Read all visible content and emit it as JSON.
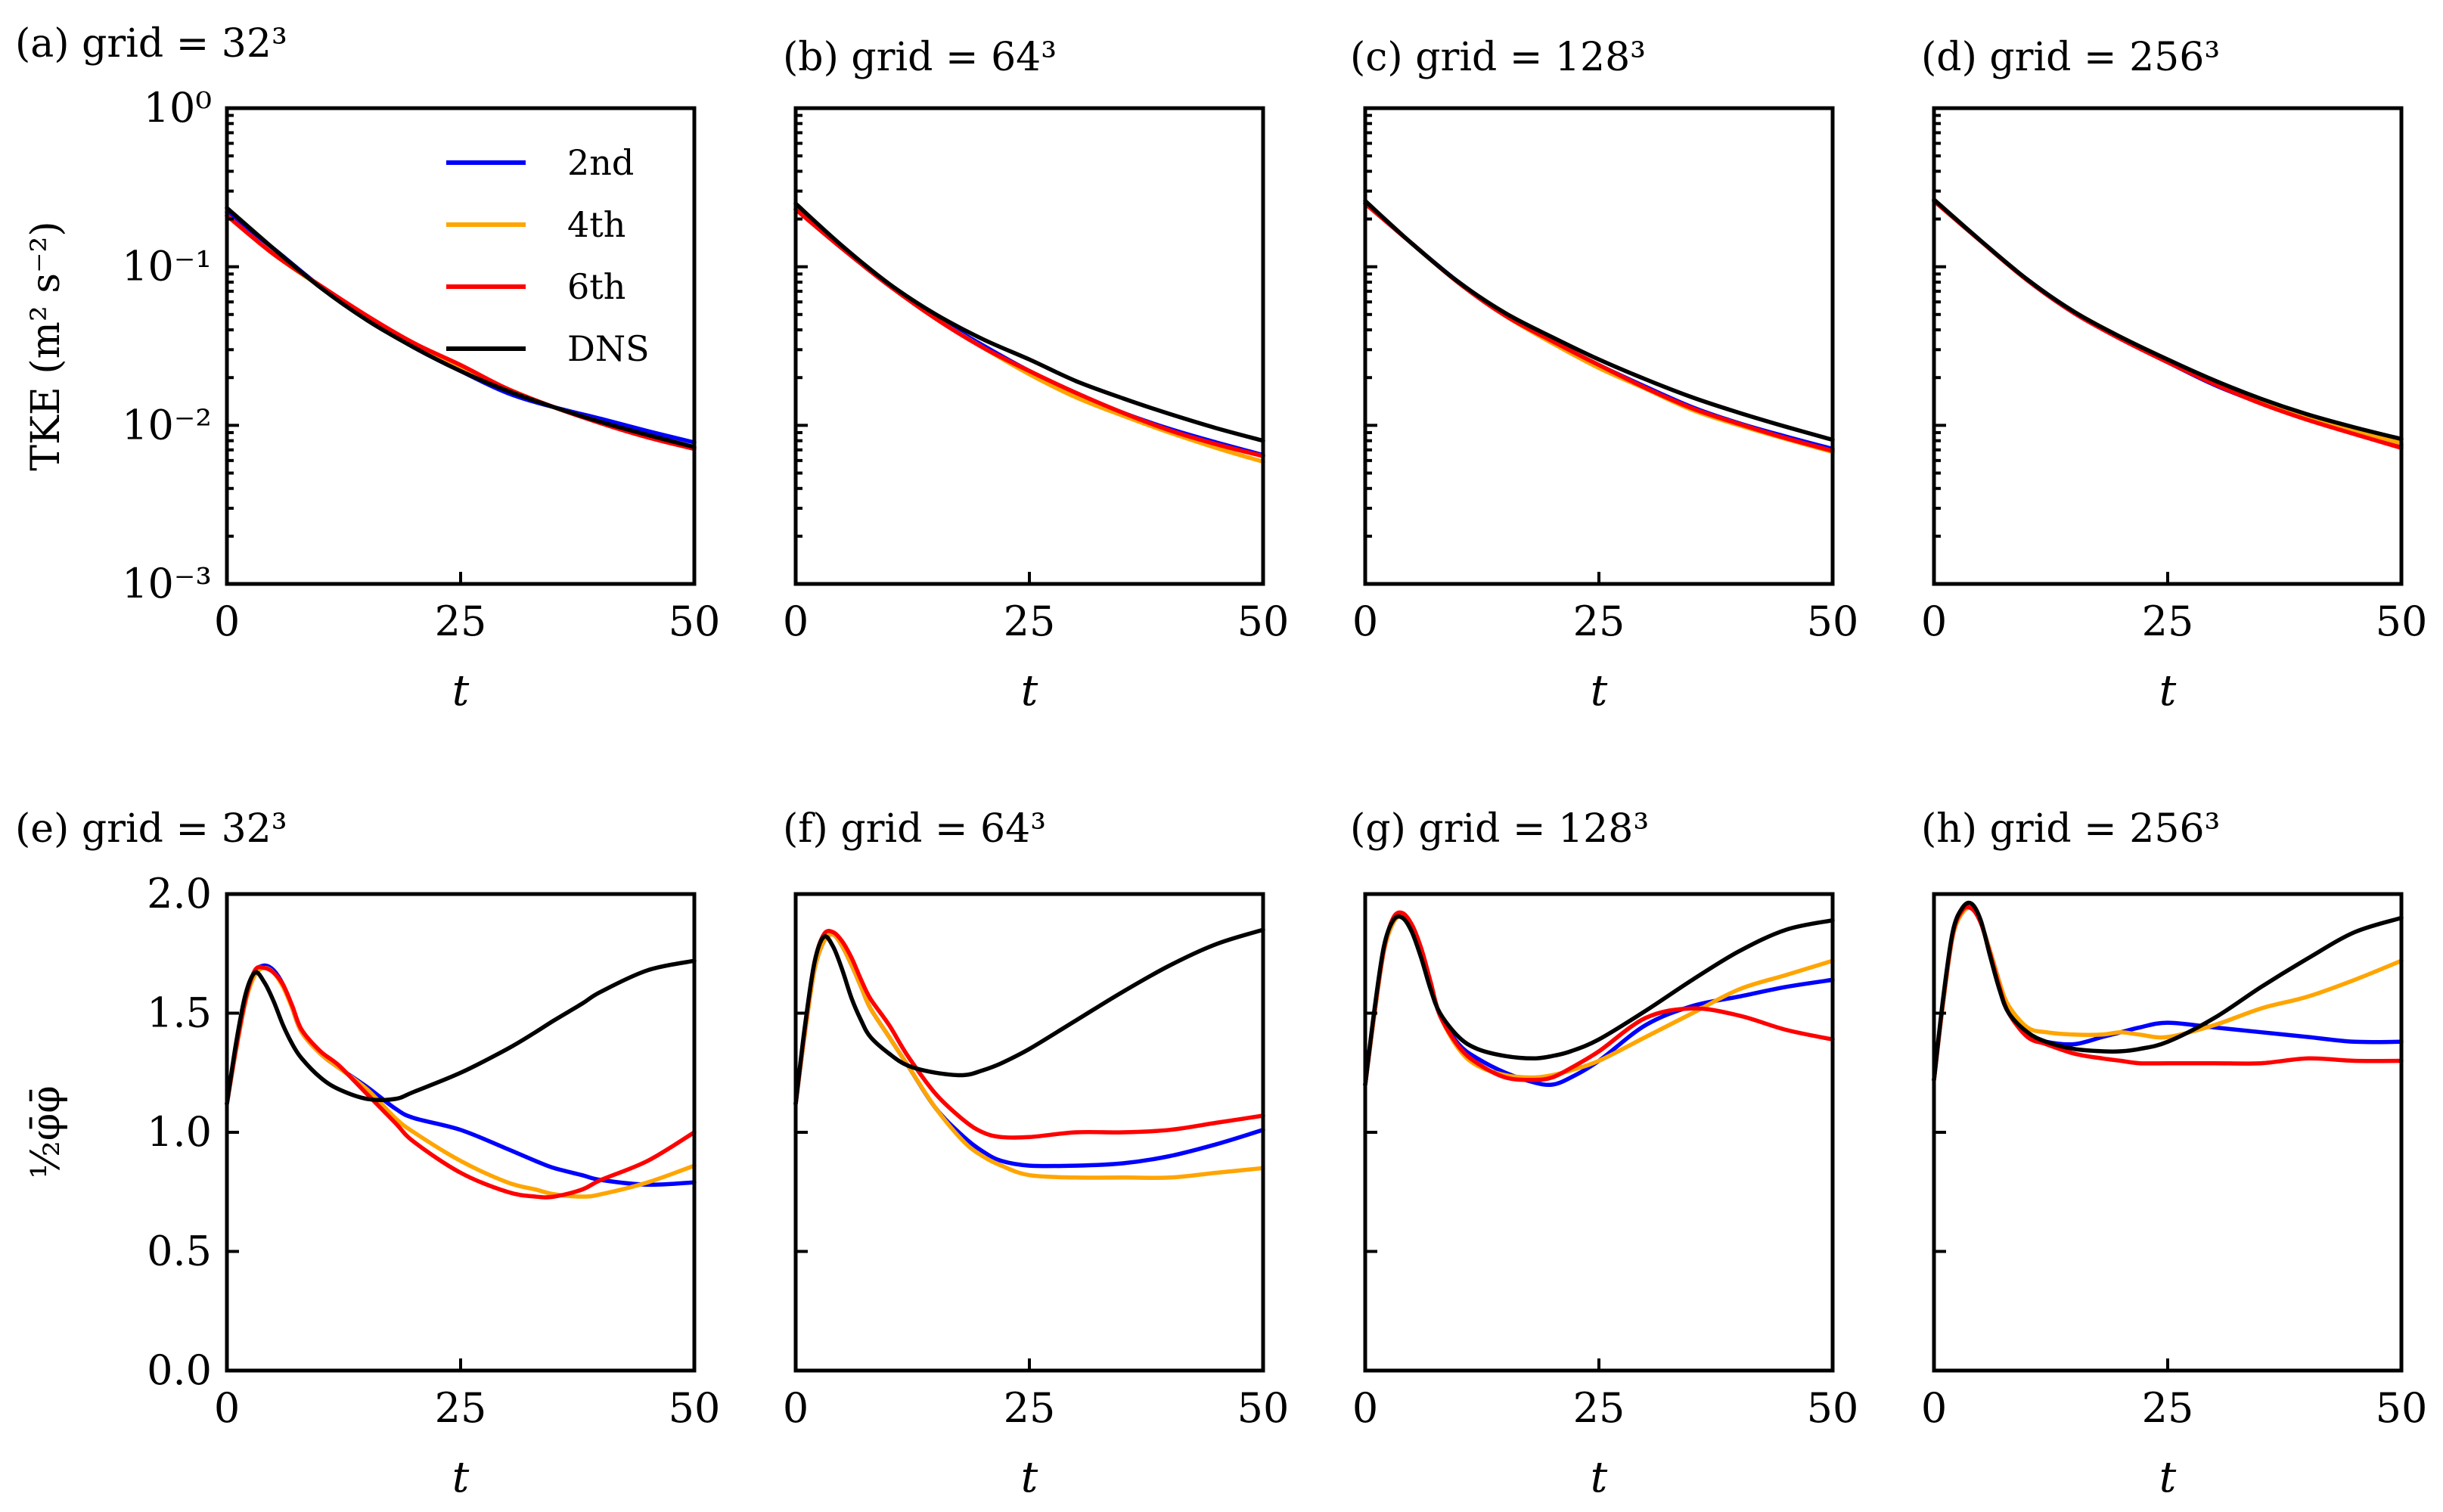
{
  "colors": {
    "2nd": "#0000ff",
    "4th": "#ffa500",
    "6th": "#ff0000",
    "DNS": "#000000"
  },
  "legend": [
    "2nd",
    "4th",
    "6th",
    "DNS"
  ],
  "top_ylabel": "TKE (m² s⁻²)",
  "bottom_ylabel": "½φ̄φ̄",
  "xlabel": "t",
  "chart_data": [
    {
      "type": "line",
      "panel": "a",
      "title": "(a) grid = 32³",
      "xlabel": "t",
      "ylabel": "TKE (m² s⁻²)",
      "yscale": "log",
      "xlim": [
        0,
        50
      ],
      "ylim": [
        0.001,
        1
      ],
      "x_ticks": [
        0,
        25,
        50
      ],
      "y_ticks": [
        "10⁰",
        "10⁻¹",
        "10⁻²",
        "10⁻³"
      ],
      "legend_position": "top-right",
      "x": [
        0,
        5,
        10,
        15,
        20,
        25,
        30,
        35,
        40,
        45,
        50
      ],
      "series": [
        {
          "name": "2nd",
          "values": [
            0.22,
            0.13,
            0.075,
            0.047,
            0.031,
            0.022,
            0.016,
            0.013,
            0.011,
            0.0092,
            0.0078
          ]
        },
        {
          "name": "4th",
          "values": [
            0.21,
            0.12,
            0.075,
            0.048,
            0.033,
            0.023,
            0.017,
            0.013,
            0.0105,
            0.0085,
            0.0072
          ]
        },
        {
          "name": "6th",
          "values": [
            0.21,
            0.12,
            0.076,
            0.049,
            0.033,
            0.024,
            0.017,
            0.013,
            0.0103,
            0.0084,
            0.0071
          ]
        },
        {
          "name": "DNS",
          "values": [
            0.235,
            0.13,
            0.074,
            0.046,
            0.031,
            0.022,
            0.0165,
            0.013,
            0.0105,
            0.0087,
            0.0073
          ]
        }
      ]
    },
    {
      "type": "line",
      "panel": "b",
      "title": "(b) grid = 64³",
      "yscale": "log",
      "xlim": [
        0,
        50
      ],
      "ylim": [
        0.001,
        1
      ],
      "xlabel": "t",
      "x_ticks": [
        0,
        25,
        50
      ],
      "x": [
        0,
        5,
        10,
        15,
        20,
        25,
        30,
        35,
        40,
        45,
        50
      ],
      "series": [
        {
          "name": "2nd",
          "values": [
            0.23,
            0.13,
            0.076,
            0.048,
            0.032,
            0.022,
            0.016,
            0.012,
            0.0095,
            0.0078,
            0.0065
          ]
        },
        {
          "name": "4th",
          "values": [
            0.23,
            0.13,
            0.076,
            0.047,
            0.031,
            0.021,
            0.015,
            0.0115,
            0.009,
            0.0072,
            0.0059
          ]
        },
        {
          "name": "6th",
          "values": [
            0.23,
            0.13,
            0.076,
            0.047,
            0.031,
            0.022,
            0.016,
            0.012,
            0.0093,
            0.0076,
            0.0064
          ]
        },
        {
          "name": "DNS",
          "values": [
            0.25,
            0.135,
            0.078,
            0.05,
            0.035,
            0.026,
            0.019,
            0.0148,
            0.0118,
            0.0096,
            0.008
          ]
        }
      ]
    },
    {
      "type": "line",
      "panel": "c",
      "title": "(c) grid = 128³",
      "yscale": "log",
      "xlim": [
        0,
        50
      ],
      "ylim": [
        0.001,
        1
      ],
      "xlabel": "t",
      "x_ticks": [
        0,
        25,
        50
      ],
      "x": [
        0,
        5,
        10,
        15,
        20,
        25,
        30,
        35,
        40,
        45,
        50
      ],
      "series": [
        {
          "name": "2nd",
          "values": [
            0.25,
            0.14,
            0.08,
            0.05,
            0.034,
            0.024,
            0.0175,
            0.013,
            0.0103,
            0.0085,
            0.0071
          ]
        },
        {
          "name": "4th",
          "values": [
            0.25,
            0.14,
            0.079,
            0.049,
            0.033,
            0.023,
            0.017,
            0.0125,
            0.01,
            0.0082,
            0.0068
          ]
        },
        {
          "name": "6th",
          "values": [
            0.25,
            0.14,
            0.079,
            0.049,
            0.034,
            0.024,
            0.0172,
            0.0128,
            0.0102,
            0.0083,
            0.0069
          ]
        },
        {
          "name": "DNS",
          "values": [
            0.26,
            0.14,
            0.08,
            0.051,
            0.036,
            0.026,
            0.0195,
            0.015,
            0.012,
            0.0098,
            0.0081
          ]
        }
      ]
    },
    {
      "type": "line",
      "panel": "d",
      "title": "(d) grid = 256³",
      "yscale": "log",
      "xlim": [
        0,
        50
      ],
      "ylim": [
        0.001,
        1
      ],
      "xlabel": "t",
      "x_ticks": [
        0,
        25,
        50
      ],
      "x": [
        0,
        5,
        10,
        15,
        20,
        25,
        30,
        35,
        40,
        45,
        50
      ],
      "series": [
        {
          "name": "2nd",
          "values": [
            0.26,
            0.145,
            0.082,
            0.051,
            0.035,
            0.025,
            0.018,
            0.0138,
            0.011,
            0.0091,
            0.0075
          ]
        },
        {
          "name": "4th",
          "values": [
            0.26,
            0.145,
            0.082,
            0.052,
            0.036,
            0.026,
            0.019,
            0.0143,
            0.0113,
            0.0093,
            0.0077
          ]
        },
        {
          "name": "6th",
          "values": [
            0.26,
            0.145,
            0.082,
            0.051,
            0.035,
            0.025,
            0.0182,
            0.0137,
            0.0108,
            0.0088,
            0.0072
          ]
        },
        {
          "name": "DNS",
          "values": [
            0.265,
            0.146,
            0.083,
            0.052,
            0.036,
            0.026,
            0.0192,
            0.0147,
            0.0117,
            0.0097,
            0.0082
          ]
        }
      ]
    },
    {
      "type": "line",
      "panel": "e",
      "title": "(e) grid = 32³",
      "xlabel": "t",
      "ylabel": "½φ̄φ̄",
      "yscale": "linear",
      "xlim": [
        0,
        50
      ],
      "ylim": [
        0,
        2
      ],
      "x_ticks": [
        0,
        25,
        50
      ],
      "y_ticks": [
        0.0,
        0.5,
        1.0,
        1.5,
        2.0
      ],
      "x": [
        0,
        1,
        2,
        3,
        4,
        5,
        6,
        7,
        8,
        10,
        12,
        15,
        18,
        20,
        25,
        30,
        33,
        35,
        38,
        40,
        45,
        50
      ],
      "series": [
        {
          "name": "2nd",
          "values": [
            1.12,
            1.35,
            1.55,
            1.67,
            1.7,
            1.68,
            1.62,
            1.52,
            1.42,
            1.33,
            1.27,
            1.19,
            1.1,
            1.06,
            1.01,
            0.93,
            0.88,
            0.85,
            0.82,
            0.8,
            0.78,
            0.79
          ]
        },
        {
          "name": "4th",
          "values": [
            1.12,
            1.35,
            1.55,
            1.66,
            1.69,
            1.67,
            1.61,
            1.52,
            1.42,
            1.33,
            1.27,
            1.18,
            1.06,
            1.0,
            0.88,
            0.79,
            0.76,
            0.74,
            0.73,
            0.74,
            0.79,
            0.86
          ]
        },
        {
          "name": "6th",
          "values": [
            1.12,
            1.36,
            1.56,
            1.68,
            1.69,
            1.67,
            1.62,
            1.53,
            1.43,
            1.34,
            1.28,
            1.16,
            1.04,
            0.96,
            0.83,
            0.75,
            0.73,
            0.73,
            0.76,
            0.8,
            0.88,
            1.0
          ]
        },
        {
          "name": "DNS",
          "values": [
            1.12,
            1.38,
            1.58,
            1.67,
            1.63,
            1.55,
            1.45,
            1.37,
            1.31,
            1.23,
            1.18,
            1.14,
            1.14,
            1.17,
            1.25,
            1.35,
            1.42,
            1.47,
            1.54,
            1.59,
            1.68,
            1.72
          ]
        }
      ]
    },
    {
      "type": "line",
      "panel": "f",
      "title": "(f) grid = 64³",
      "yscale": "linear",
      "xlim": [
        0,
        50
      ],
      "ylim": [
        0,
        2
      ],
      "xlabel": "t",
      "x_ticks": [
        0,
        25,
        50
      ],
      "x": [
        0,
        1,
        2,
        3,
        4,
        5,
        6,
        7,
        8,
        10,
        12,
        15,
        18,
        20,
        22,
        25,
        30,
        35,
        40,
        45,
        50
      ],
      "series": [
        {
          "name": "2nd",
          "values": [
            1.12,
            1.42,
            1.68,
            1.8,
            1.83,
            1.78,
            1.7,
            1.61,
            1.52,
            1.4,
            1.28,
            1.1,
            0.98,
            0.92,
            0.88,
            0.86,
            0.86,
            0.87,
            0.9,
            0.95,
            1.01
          ]
        },
        {
          "name": "4th",
          "values": [
            1.12,
            1.42,
            1.68,
            1.8,
            1.83,
            1.78,
            1.7,
            1.61,
            1.52,
            1.4,
            1.28,
            1.1,
            0.96,
            0.9,
            0.86,
            0.82,
            0.81,
            0.81,
            0.81,
            0.83,
            0.85
          ]
        },
        {
          "name": "6th",
          "values": [
            1.12,
            1.44,
            1.71,
            1.83,
            1.84,
            1.8,
            1.73,
            1.64,
            1.56,
            1.45,
            1.32,
            1.16,
            1.05,
            1.0,
            0.98,
            0.98,
            1.0,
            1.0,
            1.01,
            1.04,
            1.07
          ]
        },
        {
          "name": "DNS",
          "values": [
            1.12,
            1.45,
            1.71,
            1.82,
            1.78,
            1.68,
            1.56,
            1.47,
            1.4,
            1.33,
            1.28,
            1.25,
            1.24,
            1.26,
            1.29,
            1.35,
            1.47,
            1.59,
            1.7,
            1.79,
            1.85
          ]
        }
      ]
    },
    {
      "type": "line",
      "panel": "g",
      "title": "(g) grid = 128³",
      "yscale": "linear",
      "xlim": [
        0,
        50
      ],
      "ylim": [
        0,
        2
      ],
      "xlabel": "t",
      "x_ticks": [
        0,
        25,
        50
      ],
      "x": [
        0,
        1,
        2,
        3,
        4,
        5,
        6,
        7,
        8,
        10,
        12,
        15,
        18,
        20,
        22,
        25,
        30,
        35,
        40,
        45,
        50
      ],
      "series": [
        {
          "name": "2nd",
          "values": [
            1.2,
            1.5,
            1.76,
            1.88,
            1.91,
            1.87,
            1.77,
            1.63,
            1.49,
            1.37,
            1.31,
            1.25,
            1.21,
            1.2,
            1.23,
            1.3,
            1.45,
            1.53,
            1.57,
            1.61,
            1.64
          ]
        },
        {
          "name": "4th",
          "values": [
            1.2,
            1.5,
            1.76,
            1.88,
            1.91,
            1.87,
            1.77,
            1.63,
            1.49,
            1.35,
            1.28,
            1.24,
            1.23,
            1.24,
            1.26,
            1.3,
            1.4,
            1.5,
            1.6,
            1.66,
            1.72
          ]
        },
        {
          "name": "6th",
          "values": [
            1.2,
            1.51,
            1.77,
            1.9,
            1.92,
            1.87,
            1.77,
            1.63,
            1.49,
            1.36,
            1.29,
            1.23,
            1.22,
            1.23,
            1.27,
            1.34,
            1.48,
            1.52,
            1.49,
            1.43,
            1.39
          ]
        },
        {
          "name": "DNS",
          "values": [
            1.2,
            1.52,
            1.78,
            1.89,
            1.9,
            1.84,
            1.73,
            1.6,
            1.5,
            1.4,
            1.35,
            1.32,
            1.31,
            1.32,
            1.34,
            1.39,
            1.51,
            1.64,
            1.76,
            1.85,
            1.89
          ]
        }
      ]
    },
    {
      "type": "line",
      "panel": "h",
      "title": "(h) grid = 256³",
      "yscale": "linear",
      "xlim": [
        0,
        50
      ],
      "ylim": [
        0,
        2
      ],
      "xlabel": "t",
      "x_ticks": [
        0,
        25,
        50
      ],
      "x": [
        0,
        1,
        2,
        3,
        4,
        5,
        6,
        7,
        8,
        10,
        12,
        15,
        18,
        20,
        22,
        25,
        30,
        35,
        40,
        45,
        50
      ],
      "series": [
        {
          "name": "2nd",
          "values": [
            1.22,
            1.55,
            1.82,
            1.92,
            1.94,
            1.88,
            1.76,
            1.63,
            1.51,
            1.41,
            1.38,
            1.37,
            1.4,
            1.42,
            1.44,
            1.46,
            1.44,
            1.42,
            1.4,
            1.38,
            1.38
          ]
        },
        {
          "name": "4th",
          "values": [
            1.22,
            1.55,
            1.82,
            1.92,
            1.94,
            1.88,
            1.76,
            1.63,
            1.53,
            1.44,
            1.42,
            1.41,
            1.41,
            1.42,
            1.41,
            1.4,
            1.45,
            1.52,
            1.57,
            1.64,
            1.72
          ]
        },
        {
          "name": "6th",
          "values": [
            1.22,
            1.56,
            1.83,
            1.93,
            1.94,
            1.88,
            1.75,
            1.61,
            1.5,
            1.4,
            1.37,
            1.33,
            1.31,
            1.3,
            1.29,
            1.29,
            1.29,
            1.29,
            1.31,
            1.3,
            1.3
          ]
        },
        {
          "name": "DNS",
          "values": [
            1.22,
            1.57,
            1.84,
            1.94,
            1.96,
            1.89,
            1.74,
            1.6,
            1.5,
            1.42,
            1.38,
            1.35,
            1.34,
            1.34,
            1.35,
            1.38,
            1.48,
            1.61,
            1.73,
            1.84,
            1.9
          ]
        }
      ]
    }
  ]
}
